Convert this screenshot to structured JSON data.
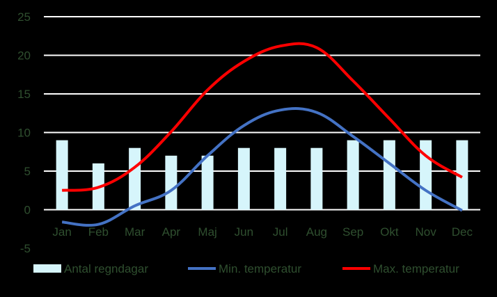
{
  "chart_data": {
    "type": "bar+line",
    "categories": [
      "Jan",
      "Feb",
      "Mar",
      "Apr",
      "Maj",
      "Jun",
      "Jul",
      "Aug",
      "Sep",
      "Okt",
      "Nov",
      "Dec"
    ],
    "series": [
      {
        "name": "Antal regndagar",
        "type": "bar",
        "color": "#d6f5fb",
        "values": [
          9,
          6,
          8,
          7,
          7,
          8,
          8,
          8,
          9,
          9,
          9,
          9
        ]
      },
      {
        "name": "Min. temperatur",
        "type": "line",
        "color": "#4472c4",
        "values": [
          -1.6,
          -1.9,
          0.5,
          2.5,
          7.0,
          10.9,
          12.9,
          12.6,
          9.5,
          6.0,
          2.5,
          -0.1
        ]
      },
      {
        "name": "Max. temperatur",
        "type": "line",
        "color": "#ff0000",
        "values": [
          2.5,
          2.9,
          5.5,
          10.1,
          15.5,
          19.2,
          21.2,
          21.0,
          16.7,
          11.8,
          7.0,
          4.2
        ]
      }
    ],
    "ylim": [
      -5,
      25
    ],
    "yticks": [
      "-5",
      "0",
      "5",
      "10",
      "15",
      "20",
      "25"
    ],
    "grid": true,
    "legend": "bottom",
    "title": "",
    "xlabel": "",
    "ylabel": ""
  }
}
